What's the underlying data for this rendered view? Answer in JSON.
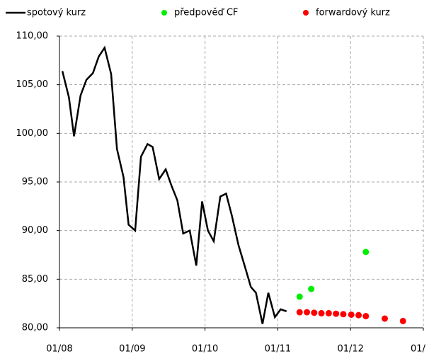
{
  "chart_data": {
    "type": "line",
    "xlim": [
      2008,
      2013
    ],
    "ylim": [
      80,
      110
    ],
    "xticks": [
      {
        "value": 2008,
        "label": "01/08"
      },
      {
        "value": 2009,
        "label": "01/09"
      },
      {
        "value": 2010,
        "label": "01/10"
      },
      {
        "value": 2011,
        "label": "01/11"
      },
      {
        "value": 2012,
        "label": "01/12"
      },
      {
        "value": 2013,
        "label": "01/"
      }
    ],
    "yticks": [
      {
        "value": 80,
        "label": "80,00"
      },
      {
        "value": 85,
        "label": "85,00"
      },
      {
        "value": 90,
        "label": "90,00"
      },
      {
        "value": 95,
        "label": "95,00"
      },
      {
        "value": 100,
        "label": "100,00"
      },
      {
        "value": 105,
        "label": "105,00"
      },
      {
        "value": 110,
        "label": "110,00"
      }
    ],
    "grid": true,
    "series": [
      {
        "name": "spotový kurz",
        "color": "#000000",
        "mode": "line",
        "x": [
          2008.04,
          2008.13,
          2008.2,
          2008.29,
          2008.37,
          2008.46,
          2008.54,
          2008.62,
          2008.71,
          2008.79,
          2008.88,
          2008.95,
          2009.04,
          2009.12,
          2009.21,
          2009.28,
          2009.37,
          2009.46,
          2009.54,
          2009.62,
          2009.7,
          2009.79,
          2009.88,
          2009.96,
          2010.04,
          2010.12,
          2010.21,
          2010.29,
          2010.37,
          2010.46,
          2010.54,
          2010.63,
          2010.7,
          2010.79,
          2010.87,
          2010.96,
          2011.04,
          2011.12
        ],
        "values": [
          106.4,
          103.7,
          99.7,
          103.9,
          105.5,
          106.2,
          107.9,
          108.8,
          106.1,
          98.4,
          95.5,
          90.6,
          90.0,
          97.6,
          98.9,
          98.6,
          95.3,
          96.3,
          94.6,
          93.1,
          89.7,
          90.0,
          86.4,
          93.0,
          90.0,
          88.9,
          93.5,
          93.8,
          91.5,
          88.5,
          86.5,
          84.2,
          83.6,
          80.4,
          83.6,
          81.1,
          81.9,
          81.7
        ]
      },
      {
        "name": "předpověď CF",
        "color": "#00ee00",
        "mode": "markers",
        "x": [
          2011.3,
          2011.46,
          2012.21
        ],
        "values": [
          83.2,
          84.0,
          87.8
        ]
      },
      {
        "name": "forwardový kurz",
        "color": "#ff0000",
        "mode": "markers",
        "x": [
          2011.3,
          2011.4,
          2011.5,
          2011.6,
          2011.7,
          2011.8,
          2011.9,
          2012.01,
          2012.11,
          2012.21,
          2012.47,
          2012.72
        ],
        "values": [
          81.6,
          81.6,
          81.55,
          81.5,
          81.5,
          81.45,
          81.4,
          81.35,
          81.3,
          81.2,
          80.95,
          80.7
        ]
      }
    ]
  }
}
